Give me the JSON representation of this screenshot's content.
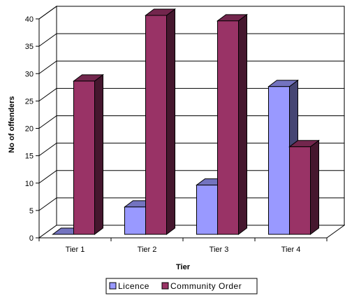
{
  "chart_data": {
    "type": "bar",
    "three_d": true,
    "categories": [
      "Tier 1",
      "Tier 2",
      "Tier 3",
      "Tier 4"
    ],
    "series": [
      {
        "name": "Licence",
        "values": [
          0,
          5,
          9,
          27
        ],
        "color": "#9999FF"
      },
      {
        "name": "Community Order",
        "values": [
          28,
          40,
          39,
          16
        ],
        "color": "#993366"
      }
    ],
    "y_ticks": [
      "0",
      "5",
      "10",
      "15",
      "20",
      "25",
      "30",
      "35",
      "40"
    ],
    "ylim": [
      0,
      40
    ],
    "xlabel": "Tier",
    "ylabel": "No of offenders",
    "grid": true,
    "legend_position": "bottom"
  }
}
